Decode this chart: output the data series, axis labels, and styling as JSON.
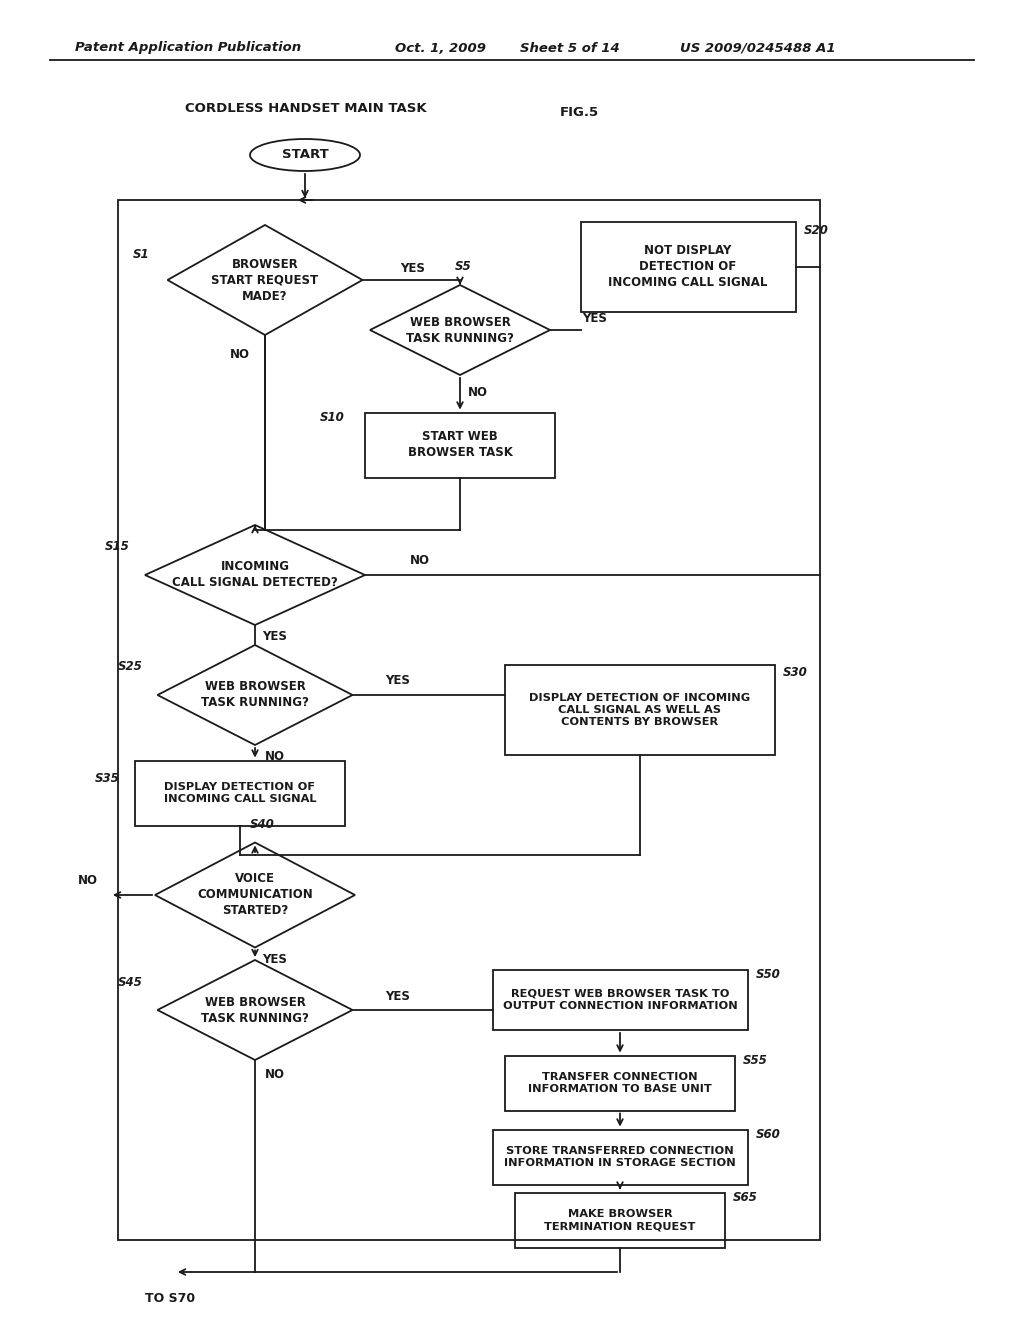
{
  "title_header": "Patent Application Publication",
  "date": "Oct. 1, 2009",
  "sheet": "Sheet 5 of 14",
  "patent_num": "US 2009/0245488 A1",
  "fig_label": "FIG.5",
  "diagram_title": "CORDLESS HANDSET MAIN TASK",
  "background_color": "#ffffff",
  "line_color": "#1a1a1a",
  "font_color": "#1a1a1a",
  "header_font": 9.5,
  "body_font": 8.0,
  "label_font": 8.0,
  "step_font": 8.5
}
